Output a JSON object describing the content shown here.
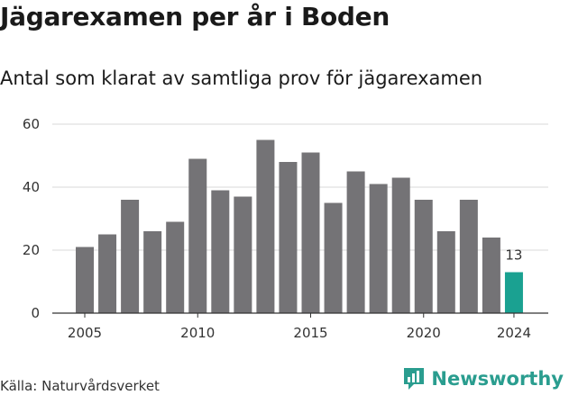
{
  "header": {
    "title": "Jägarexamen per år i Boden",
    "subtitle": "Antal som klarat av samtliga prov för jägarexamen"
  },
  "footer": {
    "source": "Källa: Naturvårdsverket",
    "brand": "Newsworthy",
    "brand_icon": "newsworthy-logo-icon"
  },
  "colors": {
    "bar": "#747376",
    "highlight": "#1aa191",
    "grid": "#d9d9d9",
    "brand": "#2a9d8f"
  },
  "chart_data": {
    "type": "bar",
    "title": "Jägarexamen per år i Boden",
    "subtitle": "Antal som klarat av samtliga prov för jägarexamen",
    "xlabel": "",
    "ylabel": "",
    "categories": [
      2005,
      2006,
      2007,
      2008,
      2009,
      2010,
      2011,
      2012,
      2013,
      2014,
      2015,
      2016,
      2017,
      2018,
      2019,
      2020,
      2021,
      2022,
      2023,
      2024
    ],
    "values": [
      21,
      25,
      36,
      26,
      29,
      49,
      39,
      37,
      55,
      48,
      51,
      35,
      45,
      41,
      43,
      36,
      26,
      36,
      24,
      13
    ],
    "ylim": [
      0,
      60
    ],
    "yticks": [
      0,
      20,
      40,
      60
    ],
    "xticks": [
      2005,
      2010,
      2015,
      2020,
      2024
    ],
    "highlight": {
      "category": 2024,
      "label": "13"
    },
    "grid": true
  }
}
